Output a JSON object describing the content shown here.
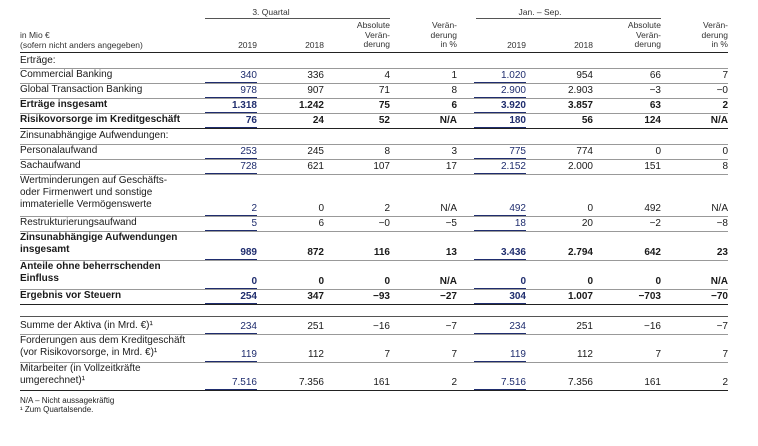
{
  "header": {
    "group1": "3. Quartal",
    "group2": "Jan. – Sep.",
    "unit_line1": "in Mio €",
    "unit_line2": "(sofern nicht anders angegeben)",
    "col_2019": "2019",
    "col_2018": "2018",
    "abs_change": [
      "Absolute",
      "Verän-",
      "derung"
    ],
    "pct_change": [
      "Verän-",
      "derung",
      "in %"
    ],
    "col_2019_b": "2019",
    "col_2018_b": "2018",
    "abs_change_b": [
      "Absolute",
      "Verän-",
      "derung"
    ],
    "pct_change_b": [
      "Verän-",
      "derung",
      "in %"
    ]
  },
  "rows": [
    {
      "label": "Erträge:",
      "values": [
        "",
        "",
        "",
        "",
        "",
        "",
        "",
        ""
      ]
    },
    {
      "label": "Commercial Banking",
      "values": [
        "340",
        "336",
        "4",
        "1",
        "1.020",
        "954",
        "66",
        "7"
      ]
    },
    {
      "label": "Global Transaction Banking",
      "values": [
        "978",
        "907",
        "71",
        "8",
        "2.900",
        "2.903",
        "−3",
        "−0"
      ]
    },
    {
      "label": "Erträge insgesamt",
      "values": [
        "1.318",
        "1.242",
        "75",
        "6",
        "3.920",
        "3.857",
        "63",
        "2"
      ]
    },
    {
      "label": "Risikovorsorge im Kreditgeschäft",
      "values": [
        "76",
        "24",
        "52",
        "N/A",
        "180",
        "56",
        "124",
        "N/A"
      ]
    },
    {
      "label": "Zinsunabhängige Aufwendungen:",
      "values": [
        "",
        "",
        "",
        "",
        "",
        "",
        "",
        ""
      ]
    },
    {
      "label": "Personalaufwand",
      "values": [
        "253",
        "245",
        "8",
        "3",
        "775",
        "774",
        "0",
        "0"
      ]
    },
    {
      "label": "Sachaufwand",
      "values": [
        "728",
        "621",
        "107",
        "17",
        "2.152",
        "2.000",
        "151",
        "8"
      ]
    },
    {
      "label_lines": [
        "Wertminderungen auf Geschäfts-",
        "oder Firmenwert und sonstige",
        "immaterielle Vermögenswerte"
      ],
      "values": [
        "2",
        "0",
        "2",
        "N/A",
        "492",
        "0",
        "492",
        "N/A"
      ]
    },
    {
      "label": "Restrukturierungsaufwand",
      "values": [
        "5",
        "6",
        "−0",
        "−5",
        "18",
        "20",
        "−2",
        "−8"
      ]
    },
    {
      "label_lines": [
        "Zinsunabhängige Aufwendungen",
        "insgesamt"
      ],
      "values": [
        "989",
        "872",
        "116",
        "13",
        "3.436",
        "2.794",
        "642",
        "23"
      ]
    },
    {
      "label_lines": [
        "Anteile ohne beherrschenden",
        "Einfluss"
      ],
      "values": [
        "0",
        "0",
        "0",
        "N/A",
        "0",
        "0",
        "0",
        "N/A"
      ]
    },
    {
      "label": "Ergebnis vor Steuern",
      "values": [
        "254",
        "347",
        "−93",
        "−27",
        "304",
        "1.007",
        "−703",
        "−70"
      ]
    },
    {
      "label": "Summe der Aktiva (in Mrd. €)¹",
      "values": [
        "234",
        "251",
        "−16",
        "−7",
        "234",
        "251",
        "−16",
        "−7"
      ]
    },
    {
      "label_lines": [
        "Forderungen aus dem Kreditgeschäft",
        "(vor Risikovorsorge, in Mrd. €)¹"
      ],
      "values": [
        "119",
        "112",
        "7",
        "7",
        "119",
        "112",
        "7",
        "7"
      ]
    },
    {
      "label_lines": [
        "Mitarbeiter (in Vollzeitkräfte",
        "umgerechnet)¹"
      ],
      "values": [
        "7.516",
        "7.356",
        "161",
        "2",
        "7.516",
        "7.356",
        "161",
        "2"
      ]
    }
  ],
  "footnotes": {
    "na": "N/A – Nicht aussagekräftig",
    "one": "¹  Zum Quartalsende."
  },
  "colors": {
    "accent": "#1f2d6e",
    "shade": "#eef1f8"
  }
}
